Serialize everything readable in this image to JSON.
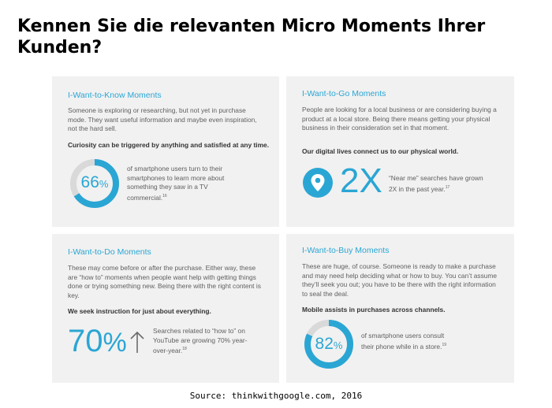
{
  "page": {
    "title": "Kennen Sie die relevanten Micro Moments Ihrer Kunden?",
    "source": "Source: thinkwithgoogle.com, 2016"
  },
  "colors": {
    "accent": "#2aa6d4",
    "ring_bg": "#d9d9d9",
    "card_bg": "#f1f1f1"
  },
  "cards": [
    {
      "heading": "I-Want-to-Know Moments",
      "body": "Someone is exploring or researching, but not yet in purchase mode. They want useful information and maybe even inspiration, not the hard sell.",
      "bold": "Curiosity can be triggered by anything and satisfied at any time.",
      "stat_value": "66",
      "stat_unit": "%",
      "stat_fraction": 0.66,
      "stat_text": "of smartphone users turn to their smartphones to learn more about something they saw in a TV commercial.",
      "footnote": "16"
    },
    {
      "heading": "I-Want-to-Go Moments",
      "body": "People are looking for a local business or are considering buying a product at a local store. Being there means getting your physical business in their consideration set in that moment.",
      "bold": "Our digital lives connect us to our physical world.",
      "stat_value": "2X",
      "stat_icon": "location-pin-icon",
      "stat_text": "“Near me” searches have grown 2X in the past year.",
      "footnote": "17"
    },
    {
      "heading": "I-Want-to-Do Moments",
      "body": "These may come before or after the purchase. Either way, these are “how to” moments when people want help with getting things done or trying something new. Being there with the right content is key.",
      "bold": "We seek instruction for just about everything.",
      "stat_value": "70",
      "stat_unit": "%",
      "stat_icon": "arrow-up-icon",
      "stat_text": "Searches related to “how to” on YouTube are growing 70% year-over-year.",
      "footnote": "18"
    },
    {
      "heading": "I-Want-to-Buy Moments",
      "body": "These are huge, of course. Someone is ready to make a purchase and may need help deciding what or how to buy. You can’t assume they’ll seek you out; you have to be there with the right information to seal the deal.",
      "bold": "Mobile assists in purchases across channels.",
      "stat_value": "82",
      "stat_unit": "%",
      "stat_fraction": 0.82,
      "stat_text": "of smartphone users consult their phone while in a store.",
      "footnote": "19"
    }
  ]
}
